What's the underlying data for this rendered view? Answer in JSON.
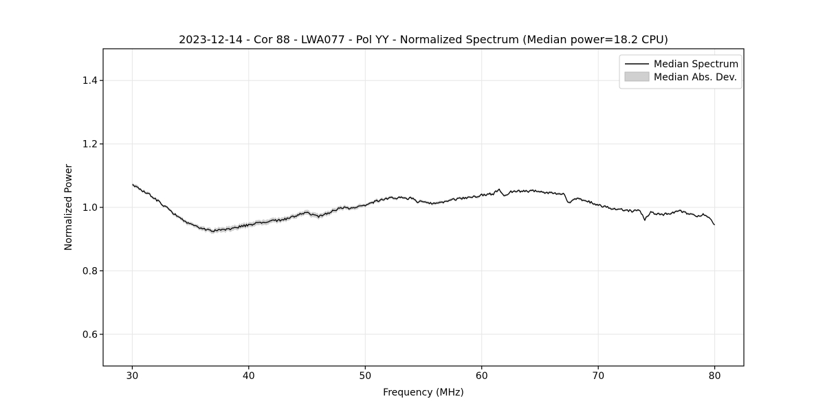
{
  "chart_data": {
    "type": "line",
    "title": "2023-12-14 - Cor 88 - LWA077 - Pol YY - Normalized Spectrum (Median power=18.2 CPU)",
    "xlabel": "Frequency (MHz)",
    "ylabel": "Normalized Power",
    "xlim": [
      27.5,
      82.5
    ],
    "ylim": [
      0.5,
      1.5
    ],
    "xticks": [
      30,
      40,
      50,
      60,
      70,
      80
    ],
    "xtick_labels": [
      "30",
      "40",
      "50",
      "60",
      "70",
      "80"
    ],
    "yticks": [
      0.6,
      0.8,
      1.0,
      1.2,
      1.4
    ],
    "ytick_labels": [
      "0.6",
      "0.8",
      "1.0",
      "1.2",
      "1.4"
    ],
    "grid": true,
    "legend": {
      "position": "upper right",
      "entries": [
        {
          "label": "Median Spectrum",
          "type": "line",
          "color": "#000000"
        },
        {
          "label": "Median Abs. Dev.",
          "type": "patch",
          "color": "#d0d0d0"
        }
      ]
    },
    "colors": {
      "line": "#000000",
      "band": "#d0d0d0",
      "grid": "#e6e6e6",
      "spine": "#000000",
      "legend_border": "#cccccc",
      "background": "#ffffff"
    },
    "series": [
      {
        "name": "Median Spectrum",
        "x": [
          30,
          30.5,
          31,
          31.5,
          32,
          32.5,
          33,
          33.5,
          34,
          34.5,
          35,
          35.5,
          36,
          36.5,
          37,
          37.5,
          38,
          38.5,
          39,
          39.5,
          40,
          40.5,
          41,
          41.5,
          42,
          42.5,
          43,
          43.5,
          44,
          44.5,
          45,
          45.5,
          46,
          46.5,
          47,
          47.5,
          48,
          48.5,
          49,
          49.5,
          50,
          50.5,
          51,
          51.5,
          52,
          52.5,
          53,
          53.5,
          54,
          54.5,
          55,
          55.5,
          56,
          56.5,
          57,
          57.5,
          58,
          58.5,
          59,
          59.5,
          60,
          60.5,
          61,
          61.5,
          62,
          62.5,
          63,
          63.5,
          64,
          64.5,
          65,
          65.5,
          66,
          66.5,
          67,
          67.5,
          68,
          68.5,
          69,
          69.5,
          70,
          70.5,
          71,
          71.5,
          72,
          72.5,
          73,
          73.5,
          74,
          74.5,
          75,
          75.5,
          76,
          76.5,
          77,
          77.5,
          78,
          78.5,
          79,
          79.5,
          80
        ],
        "y": [
          1.07,
          1.062,
          1.05,
          1.04,
          1.026,
          1.012,
          0.998,
          0.982,
          0.968,
          0.955,
          0.946,
          0.939,
          0.933,
          0.928,
          0.926,
          0.928,
          0.93,
          0.933,
          0.937,
          0.941,
          0.945,
          0.948,
          0.951,
          0.954,
          0.957,
          0.959,
          0.962,
          0.967,
          0.974,
          0.98,
          0.982,
          0.976,
          0.971,
          0.977,
          0.985,
          0.993,
          1.0,
          0.996,
          1.0,
          1.004,
          1.007,
          1.014,
          1.02,
          1.026,
          1.028,
          1.03,
          1.03,
          1.028,
          1.03,
          1.018,
          1.02,
          1.014,
          1.011,
          1.014,
          1.018,
          1.024,
          1.027,
          1.03,
          1.032,
          1.035,
          1.039,
          1.041,
          1.043,
          1.058,
          1.035,
          1.049,
          1.05,
          1.051,
          1.05,
          1.052,
          1.048,
          1.046,
          1.044,
          1.042,
          1.044,
          1.013,
          1.028,
          1.024,
          1.021,
          1.014,
          1.008,
          1.002,
          0.998,
          0.996,
          0.994,
          0.99,
          0.988,
          0.991,
          0.962,
          0.984,
          0.979,
          0.977,
          0.981,
          0.984,
          0.989,
          0.983,
          0.977,
          0.971,
          0.979,
          0.967,
          0.945
        ]
      }
    ],
    "mad_half_width": [
      0.005,
      0.005,
      0.004,
      0.004,
      0.004,
      0.004,
      0.004,
      0.005,
      0.005,
      0.006,
      0.006,
      0.006,
      0.007,
      0.007,
      0.007,
      0.008,
      0.008,
      0.008,
      0.008,
      0.008,
      0.008,
      0.008,
      0.008,
      0.008,
      0.008,
      0.008,
      0.007,
      0.007,
      0.007,
      0.007,
      0.007,
      0.008,
      0.008,
      0.007,
      0.007,
      0.007,
      0.006,
      0.006,
      0.006,
      0.006,
      0.005,
      0.005,
      0.005,
      0.005,
      0.005,
      0.004,
      0.004,
      0.004,
      0.004,
      0.004,
      0.004,
      0.004,
      0.004,
      0.004,
      0.004,
      0.004,
      0.004,
      0.004,
      0.004,
      0.004,
      0.0035,
      0.0035,
      0.0035,
      0.0035,
      0.0035,
      0.0035,
      0.0035,
      0.0035,
      0.0035,
      0.0035,
      0.0035,
      0.0035,
      0.0035,
      0.0035,
      0.0035,
      0.0035,
      0.0035,
      0.0035,
      0.0035,
      0.0035,
      0.003,
      0.003,
      0.003,
      0.003,
      0.003,
      0.003,
      0.003,
      0.003,
      0.003,
      0.003,
      0.003,
      0.003,
      0.003,
      0.003,
      0.003,
      0.003,
      0.003,
      0.003,
      0.003,
      0.003,
      0.003
    ],
    "noise": {
      "seed": 20231214,
      "amplitude": 0.0035,
      "band_amplitude": 0.0015,
      "substeps": 5
    }
  }
}
